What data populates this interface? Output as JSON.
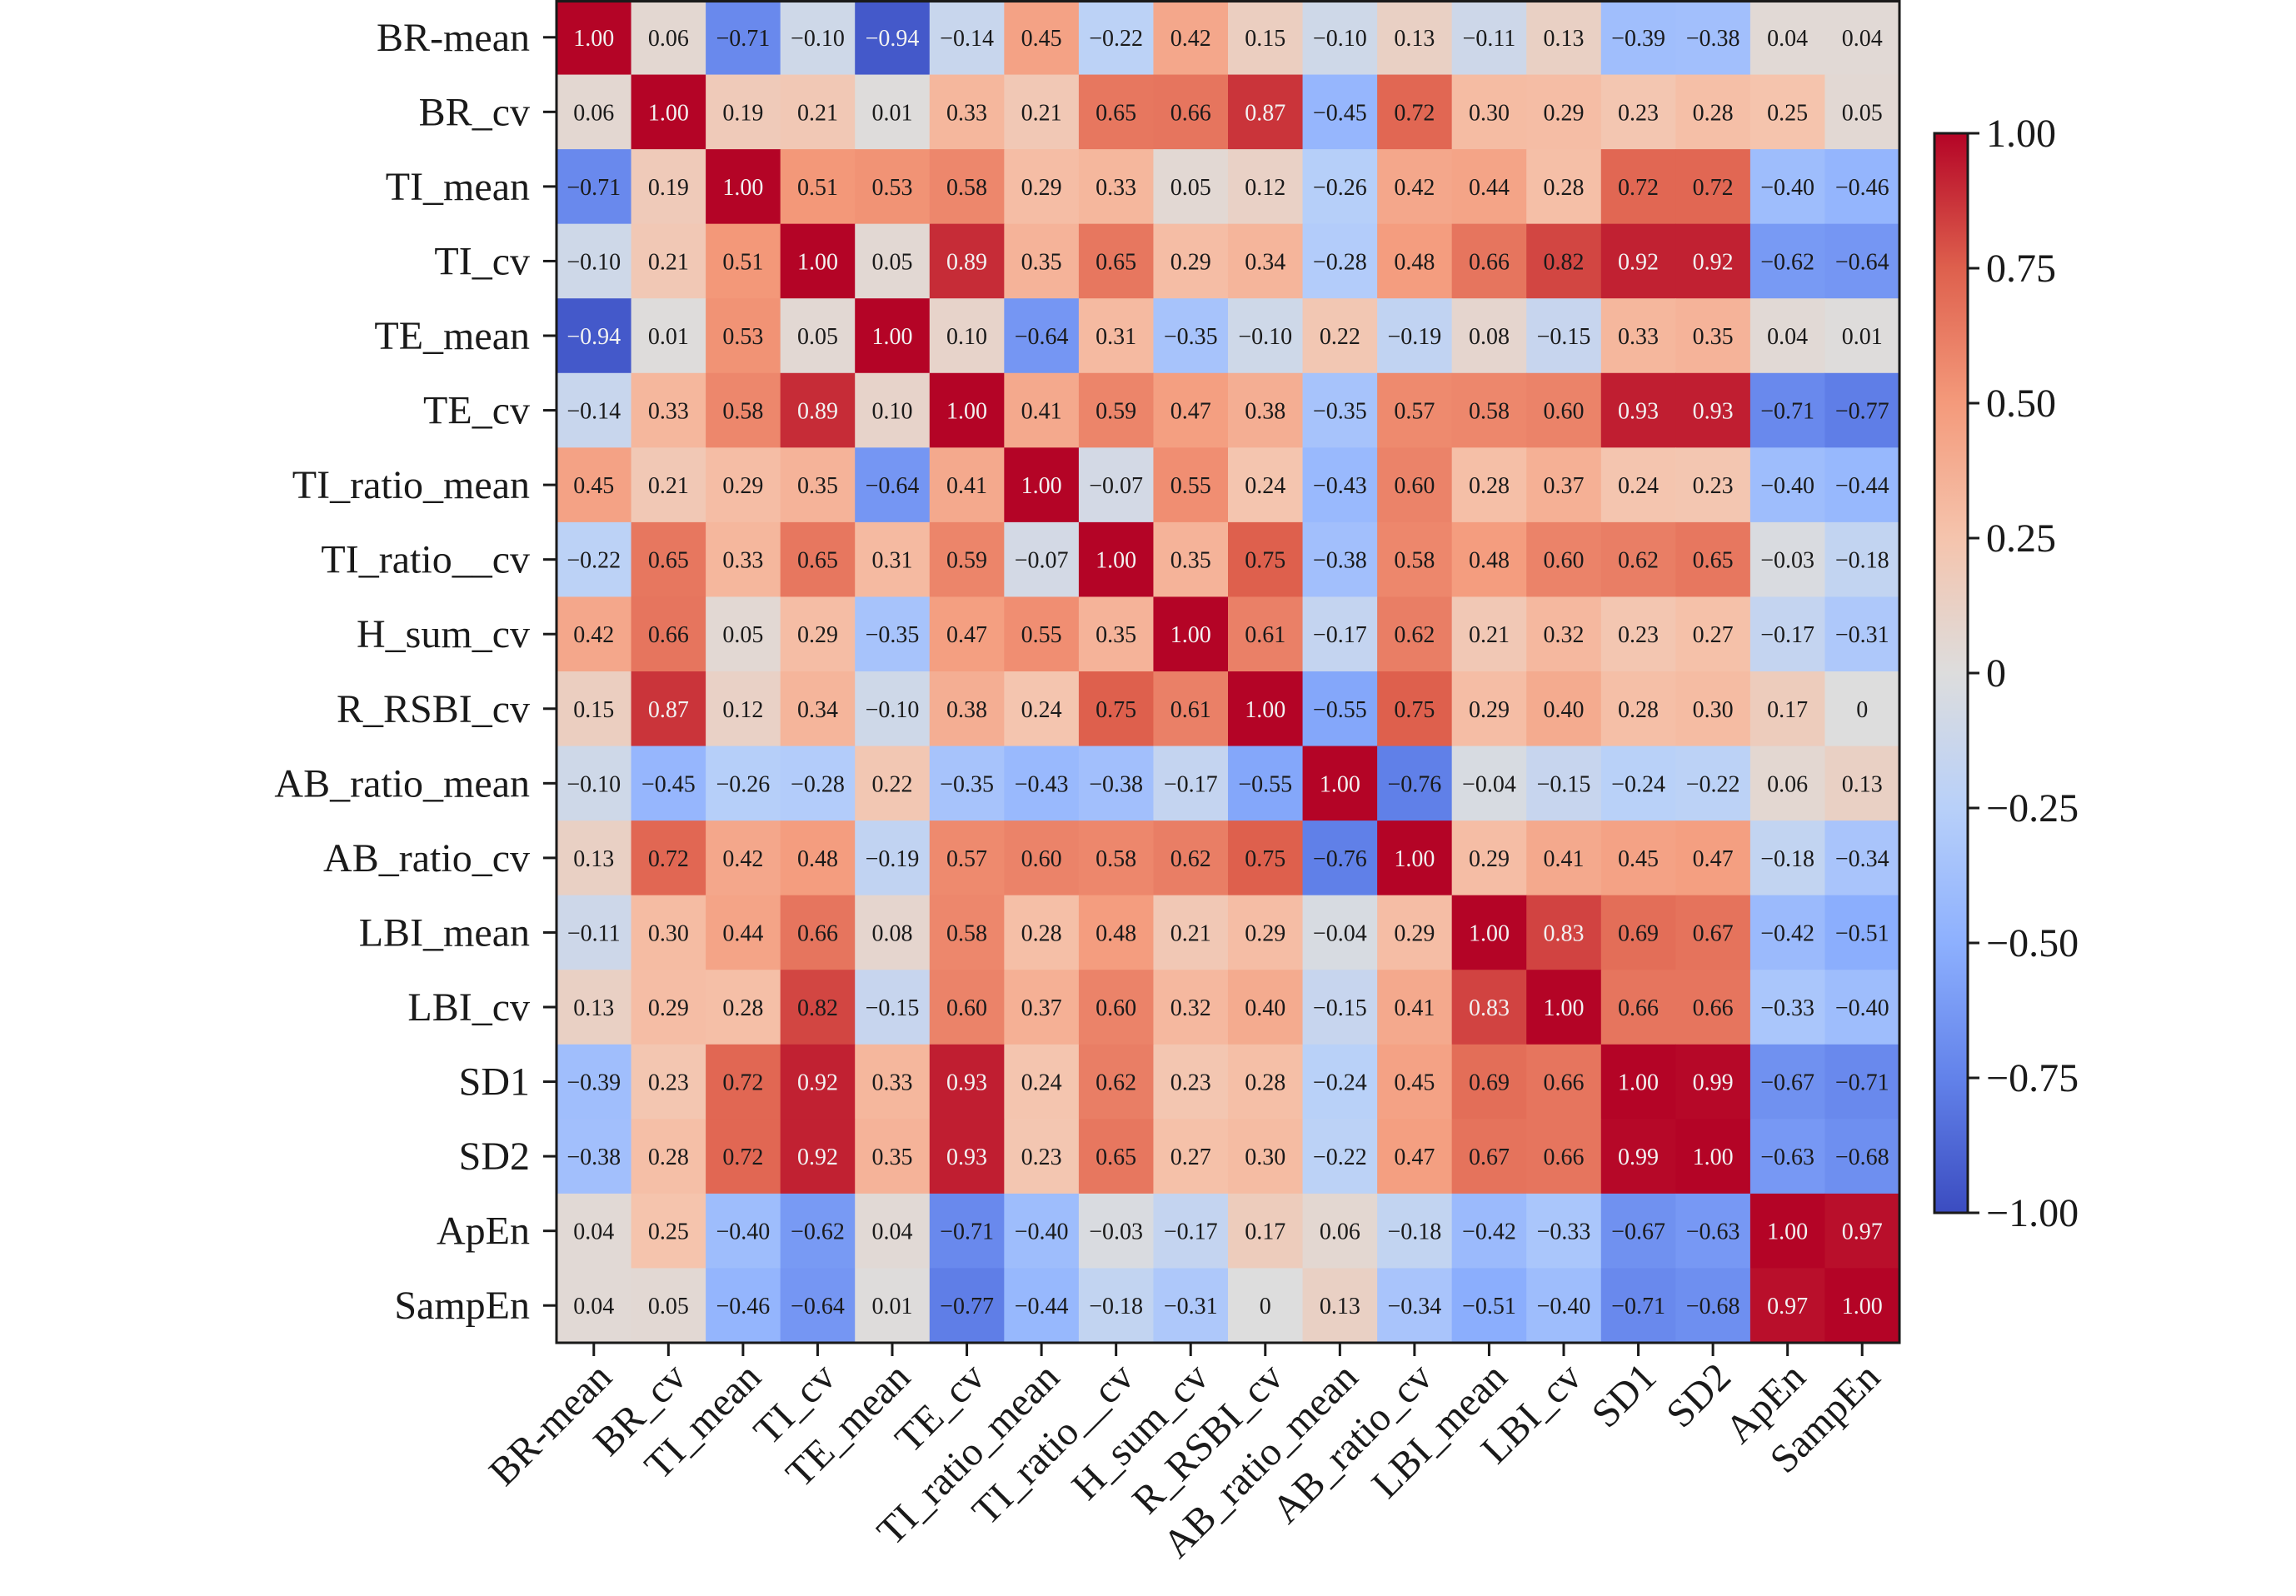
{
  "chart_data": {
    "type": "heatmap",
    "labels": [
      "BR-mean",
      "BR_cv",
      "TI_mean",
      "TI_cv",
      "TE_mean",
      "TE_cv",
      "TI_ratio_mean",
      "TI_ratio__cv",
      "H_sum_cv",
      "R_RSBI_cv",
      "AB_ratio_mean",
      "AB_ratio_cv",
      "LBI_mean",
      "LBI_cv",
      "SD1",
      "SD2",
      "ApEn",
      "SampEn"
    ],
    "matrix": [
      [
        "1.00",
        "0.06",
        "−0.71",
        "−0.10",
        "−0.94",
        "−0.14",
        "0.45",
        "−0.22",
        "0.42",
        "0.15",
        "−0.10",
        "0.13",
        "−0.11",
        "0.13",
        "−0.39",
        "−0.38",
        "0.04",
        "0.04"
      ],
      [
        "0.06",
        "1.00",
        "0.19",
        "0.21",
        "0.01",
        "0.33",
        "0.21",
        "0.65",
        "0.66",
        "0.87",
        "−0.45",
        "0.72",
        "0.30",
        "0.29",
        "0.23",
        "0.28",
        "0.25",
        "0.05"
      ],
      [
        "−0.71",
        "0.19",
        "1.00",
        "0.51",
        "0.53",
        "0.58",
        "0.29",
        "0.33",
        "0.05",
        "0.12",
        "−0.26",
        "0.42",
        "0.44",
        "0.28",
        "0.72",
        "0.72",
        "−0.40",
        "−0.46"
      ],
      [
        "−0.10",
        "0.21",
        "0.51",
        "1.00",
        "0.05",
        "0.89",
        "0.35",
        "0.65",
        "0.29",
        "0.34",
        "−0.28",
        "0.48",
        "0.66",
        "0.82",
        "0.92",
        "0.92",
        "−0.62",
        "−0.64"
      ],
      [
        "−0.94",
        "0.01",
        "0.53",
        "0.05",
        "1.00",
        "0.10",
        "−0.64",
        "0.31",
        "−0.35",
        "−0.10",
        "0.22",
        "−0.19",
        "0.08",
        "−0.15",
        "0.33",
        "0.35",
        "0.04",
        "0.01"
      ],
      [
        "−0.14",
        "0.33",
        "0.58",
        "0.89",
        "0.10",
        "1.00",
        "0.41",
        "0.59",
        "0.47",
        "0.38",
        "−0.35",
        "0.57",
        "0.58",
        "0.60",
        "0.93",
        "0.93",
        "−0.71",
        "−0.77"
      ],
      [
        "0.45",
        "0.21",
        "0.29",
        "0.35",
        "−0.64",
        "0.41",
        "1.00",
        "−0.07",
        "0.55",
        "0.24",
        "−0.43",
        "0.60",
        "0.28",
        "0.37",
        "0.24",
        "0.23",
        "−0.40",
        "−0.44"
      ],
      [
        "−0.22",
        "0.65",
        "0.33",
        "0.65",
        "0.31",
        "0.59",
        "−0.07",
        "1.00",
        "0.35",
        "0.75",
        "−0.38",
        "0.58",
        "0.48",
        "0.60",
        "0.62",
        "0.65",
        "−0.03",
        "−0.18"
      ],
      [
        "0.42",
        "0.66",
        "0.05",
        "0.29",
        "−0.35",
        "0.47",
        "0.55",
        "0.35",
        "1.00",
        "0.61",
        "−0.17",
        "0.62",
        "0.21",
        "0.32",
        "0.23",
        "0.27",
        "−0.17",
        "−0.31"
      ],
      [
        "0.15",
        "0.87",
        "0.12",
        "0.34",
        "−0.10",
        "0.38",
        "0.24",
        "0.75",
        "0.61",
        "1.00",
        "−0.55",
        "0.75",
        "0.29",
        "0.40",
        "0.28",
        "0.30",
        "0.17",
        "0"
      ],
      [
        "−0.10",
        "−0.45",
        "−0.26",
        "−0.28",
        "0.22",
        "−0.35",
        "−0.43",
        "−0.38",
        "−0.17",
        "−0.55",
        "1.00",
        "−0.76",
        "−0.04",
        "−0.15",
        "−0.24",
        "−0.22",
        "0.06",
        "0.13"
      ],
      [
        "0.13",
        "0.72",
        "0.42",
        "0.48",
        "−0.19",
        "0.57",
        "0.60",
        "0.58",
        "0.62",
        "0.75",
        "−0.76",
        "1.00",
        "0.29",
        "0.41",
        "0.45",
        "0.47",
        "−0.18",
        "−0.34"
      ],
      [
        "−0.11",
        "0.30",
        "0.44",
        "0.66",
        "0.08",
        "0.58",
        "0.28",
        "0.48",
        "0.21",
        "0.29",
        "−0.04",
        "0.29",
        "1.00",
        "0.83",
        "0.69",
        "0.67",
        "−0.42",
        "−0.51"
      ],
      [
        "0.13",
        "0.29",
        "0.28",
        "0.82",
        "−0.15",
        "0.60",
        "0.37",
        "0.60",
        "0.32",
        "0.40",
        "−0.15",
        "0.41",
        "0.83",
        "1.00",
        "0.66",
        "0.66",
        "−0.33",
        "−0.40"
      ],
      [
        "−0.39",
        "0.23",
        "0.72",
        "0.92",
        "0.33",
        "0.93",
        "0.24",
        "0.62",
        "0.23",
        "0.28",
        "−0.24",
        "0.45",
        "0.69",
        "0.66",
        "1.00",
        "0.99",
        "−0.67",
        "−0.71"
      ],
      [
        "−0.38",
        "0.28",
        "0.72",
        "0.92",
        "0.35",
        "0.93",
        "0.23",
        "0.65",
        "0.27",
        "0.30",
        "−0.22",
        "0.47",
        "0.67",
        "0.66",
        "0.99",
        "1.00",
        "−0.63",
        "−0.68"
      ],
      [
        "0.04",
        "0.25",
        "−0.40",
        "−0.62",
        "0.04",
        "−0.71",
        "−0.40",
        "−0.03",
        "−0.17",
        "0.17",
        "0.06",
        "−0.18",
        "−0.42",
        "−0.33",
        "−0.67",
        "−0.63",
        "1.00",
        "0.97"
      ],
      [
        "0.04",
        "0.05",
        "−0.46",
        "−0.64",
        "0.01",
        "−0.77",
        "−0.44",
        "−0.18",
        "−0.31",
        "0",
        "0.13",
        "−0.34",
        "−0.51",
        "−0.40",
        "−0.71",
        "−0.68",
        "0.97",
        "1.00"
      ]
    ],
    "zlim": [
      -1.0,
      1.0
    ],
    "colormap": "coolwarm",
    "colors": {
      "low": "#3b4cc0",
      "mid": "#dddddd",
      "high": "#b40426"
    },
    "colorbar": {
      "ticks": [
        1.0,
        0.75,
        0.5,
        0.25,
        0,
        -0.25,
        -0.5,
        -0.75,
        -1.0
      ],
      "tick_labels": [
        "1.00",
        "0.75",
        "0.50",
        "0.25",
        "0",
        "−0.25",
        "−0.50",
        "−0.75",
        "−1.00"
      ]
    }
  }
}
